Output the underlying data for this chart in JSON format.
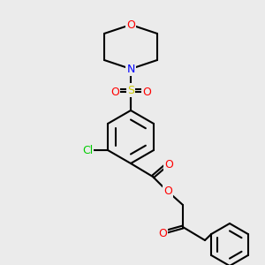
{
  "bg_color": "#ebebeb",
  "bond_color": "#000000",
  "bond_lw": 1.5,
  "atom_colors": {
    "O": "#ff0000",
    "N": "#0000ff",
    "S": "#cccc00",
    "Cl": "#00cc00"
  },
  "font_size": 9,
  "font_size_small": 8
}
